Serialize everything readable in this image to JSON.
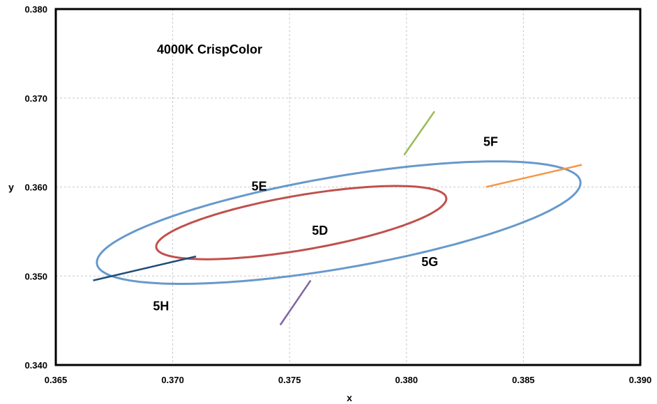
{
  "chart_data": {
    "type": "line",
    "title": "4000K CrispColor",
    "xlabel": "x",
    "ylabel": "y",
    "xlim": [
      0.365,
      0.39
    ],
    "ylim": [
      0.34,
      0.38
    ],
    "x_ticks": [
      "0.365",
      "0.370",
      "0.375",
      "0.380",
      "0.385",
      "0.390"
    ],
    "y_ticks": [
      "0.340",
      "0.350",
      "0.360",
      "0.370",
      "0.380"
    ],
    "grid": true,
    "legend": "none",
    "series": [
      {
        "color": "#6699cc",
        "kind": "ellipse",
        "center": [
          0.3771,
          0.356
        ],
        "a": 0.0115,
        "b": 0.0047,
        "angle_deg": 28.6
      },
      {
        "color": "#c0504d",
        "kind": "ellipse",
        "center": [
          0.3755,
          0.356
        ],
        "a": 0.0069,
        "b": 0.0028,
        "angle_deg": 28.6
      },
      {
        "color": "#9bbb59",
        "kind": "segment",
        "x": [
          0.3799,
          0.3812
        ],
        "y": [
          0.3636,
          0.3685
        ]
      },
      {
        "color": "#f79646",
        "kind": "segment",
        "x": [
          0.3834,
          0.3875
        ],
        "y": [
          0.36,
          0.3625
        ]
      },
      {
        "color": "#1f4e79",
        "kind": "segment",
        "x": [
          0.3666,
          0.371
        ],
        "y": [
          0.3495,
          0.3522
        ]
      },
      {
        "color": "#8064a2",
        "kind": "segment",
        "x": [
          0.3746,
          0.3759
        ],
        "y": [
          0.3445,
          0.3495
        ]
      }
    ],
    "region_labels": [
      {
        "text": "5D",
        "x": 0.3763,
        "y": 0.355
      },
      {
        "text": "5E",
        "x": 0.3737,
        "y": 0.36
      },
      {
        "text": "5F",
        "x": 0.3836,
        "y": 0.365
      },
      {
        "text": "5G",
        "x": 0.381,
        "y": 0.3515
      },
      {
        "text": "5H",
        "x": 0.3695,
        "y": 0.3465
      }
    ]
  }
}
